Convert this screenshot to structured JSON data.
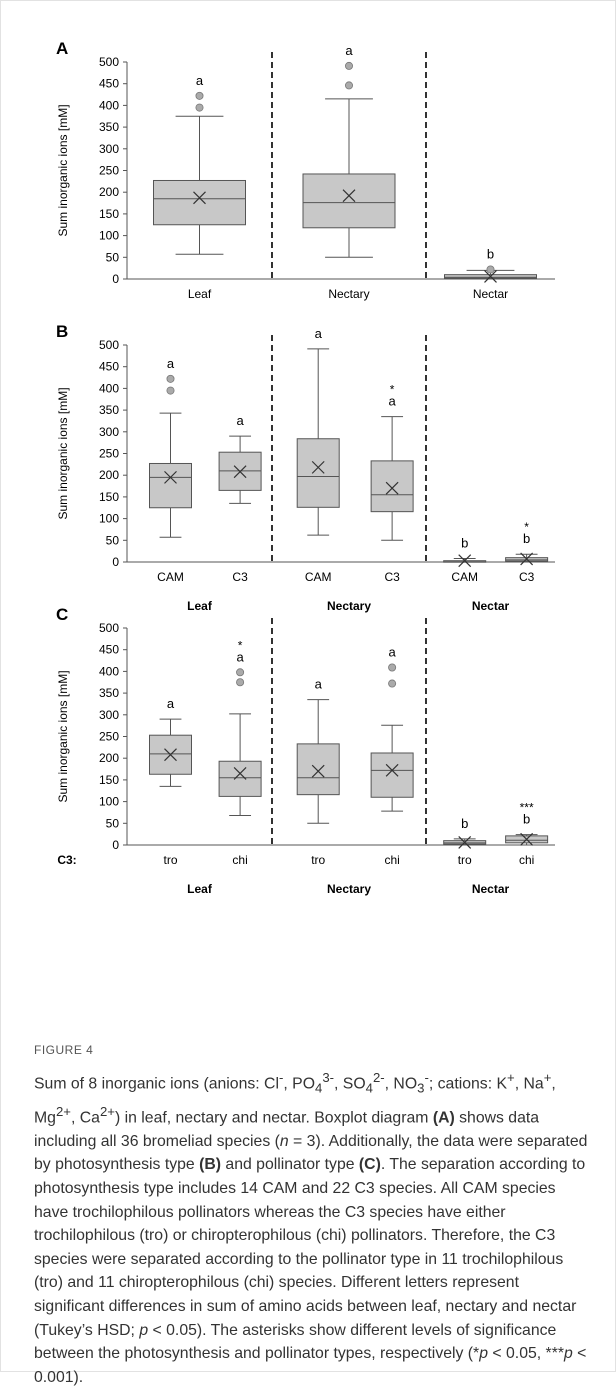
{
  "figure_label": "FIGURE 4",
  "caption_html": "Sum of 8 inorganic ions (anions: Cl<sup>-</sup>, PO<sub>4</sub><sup>3-</sup>, SO<sub>4</sub><sup>2-</sup>, NO<sub>3</sub><sup>-</sup>; cations: K<sup>+</sup>, Na<sup>+</sup>, Mg<sup>2+</sup>, Ca<sup>2+</sup>) in leaf, nectary and nectar. Boxplot diagram <b>(A)</b> shows data including all 36 bromeliad species (<i>n</i> = 3). Additionally, the data were separated by photosynthesis type <b>(B)</b> and pollinator type <b>(C)</b>. The separation according to photosynthesis type includes 14 CAM and 22 C3 species. All CAM species have trochilophilous pollinators whereas the C3 species have either trochilophilous (tro) or chiropterophilous (chi) pollinators. Therefore, the C3 species were separated according to the pollinator type in 11 trochilophilous (tro) and 11 chiropterophilous (chi) species. Different letters represent significant differences in sum of amino acids between leaf, nectary and nectar (Tukey’s HSD; <i>p</i> &lt; 0.05). The asterisks show different levels of significance between the photosynthesis and pollinator types, respectively (*<i>p</i> &lt; 0.05, ***<i>p</i> &lt; 0.001).",
  "chart_data": [
    {
      "type": "box",
      "panel": "A",
      "ylabel": "Sum inorganic ions [mM]",
      "ylim": [
        0,
        500
      ],
      "yticks": [
        0,
        50,
        100,
        150,
        200,
        250,
        300,
        350,
        400,
        450,
        500
      ],
      "axis_prefix": "",
      "groups": [
        {
          "label": "",
          "categories": [
            {
              "label": "Leaf",
              "min": 57,
              "q1": 125,
              "median": 185,
              "q3": 227,
              "max": 375,
              "mean": 187,
              "outliers": [
                395,
                422
              ],
              "letter": "a",
              "stars": ""
            }
          ]
        },
        {
          "label": "",
          "categories": [
            {
              "label": "Nectary",
              "min": 50,
              "q1": 118,
              "median": 176,
              "q3": 242,
              "max": 415,
              "mean": 192,
              "outliers": [
                446,
                491
              ],
              "letter": "a",
              "stars": ""
            }
          ]
        },
        {
          "label": "",
          "categories": [
            {
              "label": "Nectar",
              "min": 0,
              "q1": 2,
              "median": 4,
              "q3": 10,
              "max": 20,
              "mean": 6,
              "outliers": [
                22
              ],
              "letter": "b",
              "stars": ""
            }
          ]
        }
      ]
    },
    {
      "type": "box",
      "panel": "B",
      "ylabel": "Sum inorganic ions [mM]",
      "ylim": [
        0,
        500
      ],
      "yticks": [
        0,
        50,
        100,
        150,
        200,
        250,
        300,
        350,
        400,
        450,
        500
      ],
      "axis_prefix": "",
      "groups": [
        {
          "label": "Leaf",
          "categories": [
            {
              "label": "CAM",
              "min": 57,
              "q1": 125,
              "median": 195,
              "q3": 227,
              "max": 343,
              "mean": 195,
              "outliers": [
                395,
                422
              ],
              "letter": "a",
              "stars": ""
            },
            {
              "label": "C3",
              "min": 135,
              "q1": 165,
              "median": 210,
              "q3": 253,
              "max": 290,
              "mean": 208,
              "outliers": [],
              "letter": "a",
              "stars": ""
            }
          ]
        },
        {
          "label": "Nectary",
          "categories": [
            {
              "label": "CAM",
              "min": 62,
              "q1": 126,
              "median": 197,
              "q3": 284,
              "max": 491,
              "mean": 218,
              "outliers": [],
              "letter": "a",
              "stars": ""
            },
            {
              "label": "C3",
              "min": 50,
              "q1": 116,
              "median": 155,
              "q3": 233,
              "max": 335,
              "mean": 170,
              "outliers": [],
              "letter": "a",
              "stars": "*"
            }
          ]
        },
        {
          "label": "Nectar",
          "categories": [
            {
              "label": "CAM",
              "min": 0,
              "q1": 1,
              "median": 2,
              "q3": 3,
              "max": 8,
              "mean": 3,
              "outliers": [],
              "letter": "b",
              "stars": ""
            },
            {
              "label": "C3",
              "min": 0,
              "q1": 2,
              "median": 5,
              "q3": 10,
              "max": 18,
              "mean": 7,
              "outliers": [],
              "letter": "b",
              "stars": "*"
            }
          ]
        }
      ]
    },
    {
      "type": "box",
      "panel": "C",
      "ylabel": "Sum inorganic ions [mM]",
      "ylim": [
        0,
        500
      ],
      "yticks": [
        0,
        50,
        100,
        150,
        200,
        250,
        300,
        350,
        400,
        450,
        500
      ],
      "axis_prefix": "C3:",
      "groups": [
        {
          "label": "Leaf",
          "categories": [
            {
              "label": "tro",
              "min": 135,
              "q1": 163,
              "median": 210,
              "q3": 253,
              "max": 290,
              "mean": 208,
              "outliers": [],
              "letter": "a",
              "stars": ""
            },
            {
              "label": "chi",
              "min": 68,
              "q1": 112,
              "median": 155,
              "q3": 193,
              "max": 302,
              "mean": 165,
              "outliers": [
                375,
                398
              ],
              "letter": "a",
              "stars": "*"
            }
          ]
        },
        {
          "label": "Nectary",
          "categories": [
            {
              "label": "tro",
              "min": 50,
              "q1": 116,
              "median": 155,
              "q3": 233,
              "max": 335,
              "mean": 170,
              "outliers": [],
              "letter": "a",
              "stars": ""
            },
            {
              "label": "chi",
              "min": 78,
              "q1": 110,
              "median": 172,
              "q3": 212,
              "max": 276,
              "mean": 172,
              "outliers": [
                372,
                409
              ],
              "letter": "a",
              "stars": ""
            }
          ]
        },
        {
          "label": "Nectar",
          "categories": [
            {
              "label": "tro",
              "min": 0,
              "q1": 2,
              "median": 5,
              "q3": 10,
              "max": 14,
              "mean": 6,
              "outliers": [],
              "letter": "b",
              "stars": ""
            },
            {
              "label": "chi",
              "min": 0,
              "q1": 5,
              "median": 11,
              "q3": 21,
              "max": 24,
              "mean": 13,
              "outliers": [],
              "letter": "b",
              "stars": "***"
            }
          ]
        }
      ]
    }
  ]
}
